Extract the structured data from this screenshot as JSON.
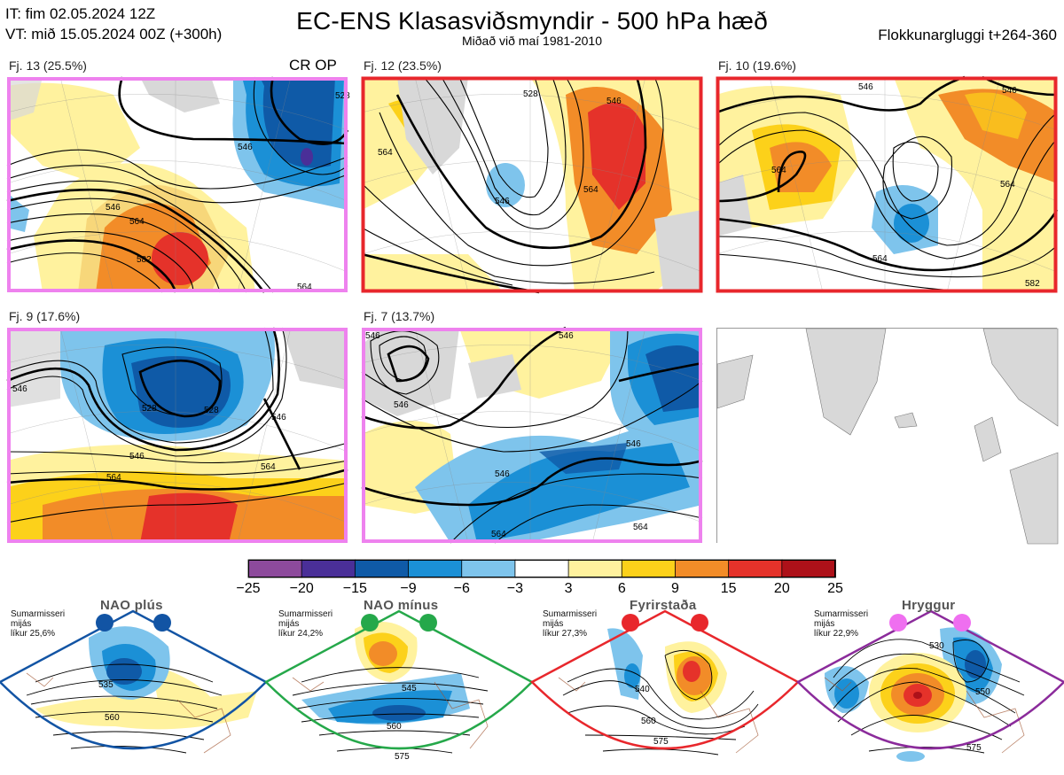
{
  "header": {
    "it_line": "IT: fim 02.05.2024 12Z",
    "vt_line": "VT: mið 15.05.2024 00Z  (+300h)",
    "title": "EC-ENS Klasasviðsmyndir - 500 hPa hæð",
    "subtitle": "Miðað við maí 1981-2010",
    "window": "Flokkunargluggi t+264-360"
  },
  "clusters": [
    {
      "label": "Fj. 13 (25.5%)",
      "frame_color": "#ee82ee",
      "extra": "CR OP"
    },
    {
      "label": "Fj. 12 (23.5%)",
      "frame_color": "#e8272c",
      "extra": ""
    },
    {
      "label": "Fj. 10 (19.6%)",
      "frame_color": "#e8272c",
      "extra": ""
    },
    {
      "label": "Fj. 9 (17.6%)",
      "frame_color": "#ee82ee",
      "extra": ""
    },
    {
      "label": "Fj. 7 (13.7%)",
      "frame_color": "#ee82ee",
      "extra": ""
    }
  ],
  "contour_labels": {
    "c13": [
      "528",
      "546",
      "546",
      "564",
      "582",
      "564"
    ],
    "c12": [
      "528",
      "546",
      "564",
      "564",
      "546"
    ],
    "c10": [
      "546",
      "546",
      "564",
      "564",
      "564",
      "582"
    ],
    "c9": [
      "546",
      "528",
      "528",
      "546",
      "564",
      "564",
      "546"
    ],
    "c7": [
      "546",
      "546",
      "546",
      "546",
      "546",
      "564",
      "564"
    ]
  },
  "colorbar": {
    "ticks": [
      "−25",
      "−20",
      "−15",
      "−9",
      "−6",
      "−3",
      "3",
      "6",
      "9",
      "15",
      "20",
      "25"
    ],
    "colors": [
      "#8d4a9c",
      "#4a2f98",
      "#0f5aa7",
      "#1b90d6",
      "#7ec4ec",
      "#ffffff",
      "#fff29e",
      "#fcd11a",
      "#f28c28",
      "#e5322a",
      "#ad1119"
    ]
  },
  "regimes": [
    {
      "name": "NAO plús",
      "season": "Sumarmisseri",
      "month": "mijás",
      "prob": "líkur 25,6%",
      "color": "#1254a4",
      "labels": [
        "535",
        "560"
      ]
    },
    {
      "name": "NAO mínus",
      "season": "Sumarmisseri",
      "month": "mijás",
      "prob": "líkur 24,2%",
      "color": "#25a84a",
      "labels": [
        "545",
        "560",
        "575"
      ]
    },
    {
      "name": "Fyrirstaða",
      "season": "Sumarmisseri",
      "month": "mijás",
      "prob": "líkur 27,3%",
      "color": "#e8272c",
      "labels": [
        "540",
        "560",
        "575"
      ]
    },
    {
      "name": "Hryggur",
      "season": "Sumarmisseri",
      "month": "mijás",
      "prob": "líkur 22,9%",
      "color": "#ef6ff0",
      "labels": [
        "530",
        "550",
        "575"
      ]
    }
  ]
}
